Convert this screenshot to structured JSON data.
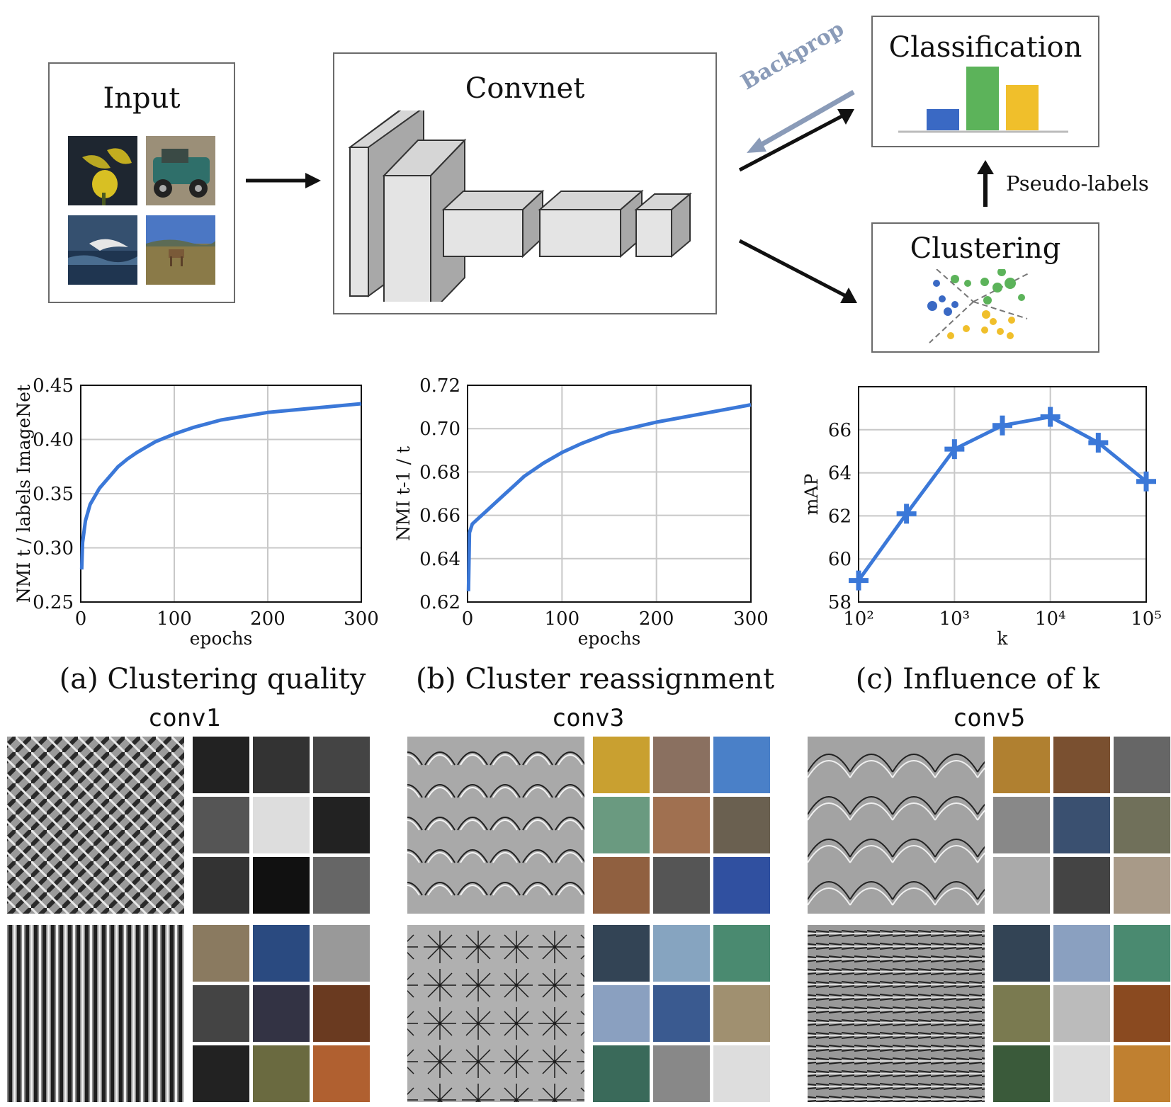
{
  "pipeline": {
    "input_title": "Input",
    "convnet_title": "Convnet",
    "classification_title": "Classification",
    "clustering_title": "Clustering",
    "backprop_label": "Backprop",
    "pseudo_labels_label": "Pseudo-labels"
  },
  "colors": {
    "blue": "#3a69c4",
    "green": "#5cb35a",
    "yellow": "#f0bf2b",
    "curve": "#3b78d8",
    "backprop": "#8a9bb8",
    "gray_box": "#dcdcdc"
  },
  "captions": {
    "a": "(a) Clustering quality",
    "b": "(b) Cluster reassignment",
    "c": "(c) Influence of k"
  },
  "filters": {
    "conv1": "conv1",
    "conv3": "conv3",
    "conv5": "conv5"
  },
  "chart_data": [
    {
      "type": "line",
      "xlabel": "epochs",
      "ylabel": "NMI t / labels ImageNet",
      "xlim": [
        0,
        300
      ],
      "ylim": [
        0.25,
        0.45
      ],
      "xticks": [
        "0",
        "100",
        "200",
        "300"
      ],
      "yticks": [
        "0.25",
        "0.30",
        "0.35",
        "0.40",
        "0.45"
      ],
      "grid": true,
      "series": [
        {
          "x": [
            1,
            2,
            5,
            10,
            20,
            30,
            40,
            50,
            60,
            80,
            100,
            120,
            150,
            200,
            250,
            300
          ],
          "values": [
            0.28,
            0.305,
            0.325,
            0.34,
            0.355,
            0.365,
            0.375,
            0.382,
            0.388,
            0.398,
            0.405,
            0.411,
            0.418,
            0.425,
            0.429,
            0.433
          ]
        }
      ]
    },
    {
      "type": "line",
      "xlabel": "epochs",
      "ylabel": "NMI t-1 / t",
      "xlim": [
        0,
        300
      ],
      "ylim": [
        0.62,
        0.72
      ],
      "xticks": [
        "0",
        "100",
        "200",
        "300"
      ],
      "yticks": [
        "0.62",
        "0.64",
        "0.66",
        "0.68",
        "0.70",
        "0.72"
      ],
      "grid": true,
      "series": [
        {
          "x": [
            1,
            2,
            5,
            10,
            20,
            30,
            40,
            50,
            60,
            80,
            100,
            120,
            150,
            200,
            250,
            300
          ],
          "values": [
            0.625,
            0.652,
            0.656,
            0.658,
            0.662,
            0.666,
            0.67,
            0.674,
            0.678,
            0.684,
            0.689,
            0.693,
            0.698,
            0.703,
            0.707,
            0.711
          ]
        }
      ]
    },
    {
      "type": "line",
      "xlabel": "k",
      "ylabel": "mAP",
      "xscale": "log",
      "xlim": [
        100,
        100000
      ],
      "ylim": [
        58,
        68
      ],
      "xticks": [
        "10²",
        "10³",
        "10⁴",
        "10⁵"
      ],
      "yticks": [
        "58",
        "60",
        "62",
        "64",
        "66"
      ],
      "grid": true,
      "series": [
        {
          "x": [
            100,
            316,
            1000,
            3162,
            10000,
            31623,
            100000
          ],
          "values": [
            59.0,
            62.1,
            65.1,
            66.2,
            66.6,
            65.4,
            63.6
          ]
        }
      ]
    }
  ]
}
